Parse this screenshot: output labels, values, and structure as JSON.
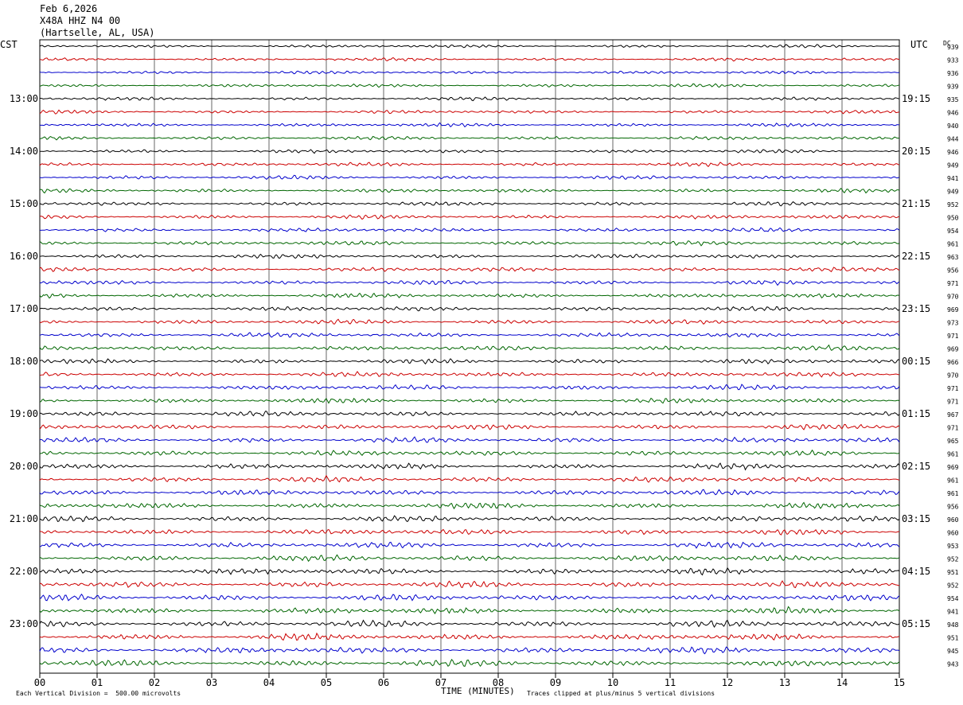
{
  "header": {
    "date": "Feb 6,2026",
    "station": "X48A HHZ N4 00",
    "location": "(Hartselle, AL, USA)"
  },
  "chart_data": {
    "type": "line",
    "title": "Feb 6,2026  X48A HHZ N4 00  (Hartselle, AL, USA)",
    "left_axis_label": "CST",
    "right_axis_label": "UTC",
    "dc_label": "DC",
    "xlabel": "TIME (MINUTES)",
    "x_ticks": [
      "00",
      "01",
      "02",
      "03",
      "04",
      "05",
      "06",
      "07",
      "08",
      "09",
      "10",
      "11",
      "12",
      "13",
      "14",
      "15"
    ],
    "xlim": [
      0,
      15
    ],
    "left_hour_labels": [
      "13:00",
      "14:00",
      "15:00",
      "16:00",
      "17:00",
      "18:00",
      "19:00",
      "20:00",
      "21:00",
      "22:00",
      "23:00"
    ],
    "right_hour_labels": [
      "19:15",
      "20:15",
      "21:15",
      "22:15",
      "23:15",
      "00:15",
      "01:15",
      "02:15",
      "03:15",
      "04:15",
      "05:15"
    ],
    "trace_colors": [
      "#000000",
      "#cc0000",
      "#0000cc",
      "#006600"
    ],
    "trace_count": 48,
    "dc_offsets": [
      "939",
      "933",
      "936",
      "939",
      "935",
      "946",
      "940",
      "944",
      "946",
      "949",
      "941",
      "949",
      "952",
      "950",
      "954",
      "961",
      "963",
      "956",
      "971",
      "970",
      "969",
      "973",
      "971",
      "969",
      "966",
      "970",
      "971",
      "971",
      "967",
      "971",
      "965",
      "961",
      "969",
      "961",
      "961",
      "956",
      "960",
      "960",
      "953",
      "952",
      "951",
      "952",
      "954",
      "941",
      "948",
      "951",
      "945",
      "943"
    ],
    "footer_scale": "Each Vertical Division =  500.00 microvolts",
    "footer_clip": "Traces clipped at plus/minus 5 vertical divisions",
    "grid": true
  }
}
